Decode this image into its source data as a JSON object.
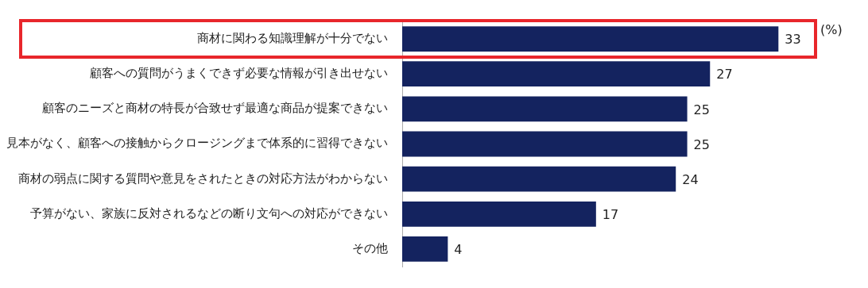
{
  "chart_data": {
    "type": "bar",
    "orientation": "horizontal",
    "categories": [
      "商材に関わる知識理解が十分でない",
      "顧客への質問がうまくできず必要な情報が引き出せない",
      "顧客のニーズと商材の特長が合致せず最適な商品が提案できない",
      "見本がなく、顧客への接触からクロージングまで体系的に習得できない",
      "商材の弱点に関する質問や意見をされたときの対応方法がわからない",
      "予算がない、家族に反対されるなどの断り文句への対応ができない",
      "その他"
    ],
    "values": [
      33,
      27,
      25,
      25,
      24,
      17,
      4
    ],
    "color": "#14235f",
    "data_labels": true,
    "legend": false,
    "tick_labels": "y",
    "annotations": [
      "(%)"
    ]
  }
}
